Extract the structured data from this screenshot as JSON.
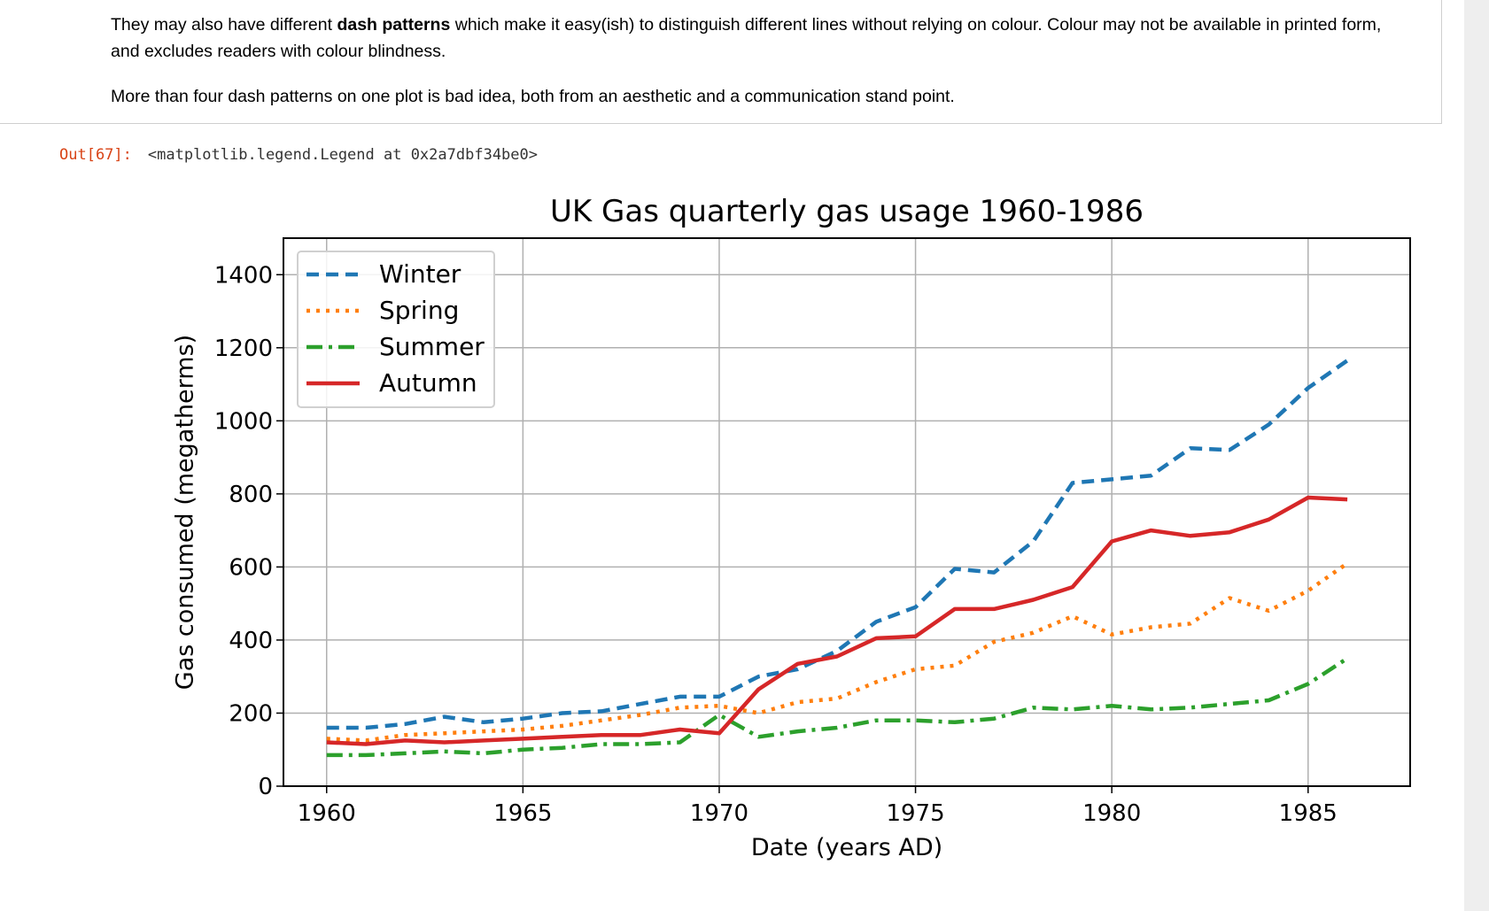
{
  "markdown": {
    "para1_before": "They may also have different ",
    "para1_bold": "dash patterns",
    "para1_after": " which make it easy(ish) to distinguish different lines without relying on colour. Colour may not be available in printed form, and excludes readers with colour blindness.",
    "para2": "More than four dash patterns on one plot is bad idea, both from an aesthetic and a communication stand point."
  },
  "output": {
    "prompt": "Out[67]:",
    "text": "<matplotlib.legend.Legend at 0x2a7dbf34be0>"
  },
  "chart_data": {
    "type": "line",
    "title": "UK Gas quarterly gas usage 1960-1986",
    "xlabel": "Date (years AD)",
    "ylabel": "Gas consumed (megatherms)",
    "xlim": [
      1958.9,
      1987.6
    ],
    "ylim": [
      0,
      1500
    ],
    "xticks": [
      1960,
      1965,
      1970,
      1975,
      1980,
      1985
    ],
    "yticks": [
      0,
      200,
      400,
      600,
      800,
      1000,
      1200,
      1400
    ],
    "grid": true,
    "legend_position": "top-left",
    "x": [
      1960,
      1961,
      1962,
      1963,
      1964,
      1965,
      1966,
      1967,
      1968,
      1969,
      1970,
      1971,
      1972,
      1973,
      1974,
      1975,
      1976,
      1977,
      1978,
      1979,
      1980,
      1981,
      1982,
      1983,
      1984,
      1985,
      1986
    ],
    "series": [
      {
        "name": "Winter",
        "color": "#1f77b4",
        "dash": "dashed",
        "values": [
          160,
          160,
          170,
          190,
          175,
          185,
          200,
          205,
          225,
          245,
          245,
          300,
          320,
          370,
          450,
          490,
          595,
          585,
          670,
          830,
          840,
          850,
          925,
          920,
          990,
          1090,
          1165
        ]
      },
      {
        "name": "Spring",
        "color": "#ff7f0e",
        "dash": "dotted",
        "values": [
          130,
          125,
          140,
          145,
          150,
          155,
          165,
          180,
          195,
          215,
          220,
          200,
          230,
          240,
          285,
          320,
          330,
          395,
          420,
          465,
          415,
          435,
          445,
          515,
          480,
          535,
          610
        ]
      },
      {
        "name": "Summer",
        "color": "#2ca02c",
        "dash": "dashdot",
        "values": [
          85,
          85,
          90,
          95,
          90,
          100,
          105,
          115,
          115,
          120,
          195,
          135,
          150,
          160,
          180,
          180,
          175,
          185,
          215,
          210,
          220,
          210,
          215,
          225,
          235,
          280,
          350
        ]
      },
      {
        "name": "Autumn",
        "color": "#d62728",
        "dash": "solid",
        "values": [
          120,
          115,
          125,
          120,
          125,
          130,
          135,
          140,
          140,
          155,
          145,
          265,
          335,
          355,
          405,
          410,
          485,
          485,
          510,
          545,
          670,
          700,
          685,
          695,
          730,
          790,
          785
        ]
      }
    ]
  }
}
